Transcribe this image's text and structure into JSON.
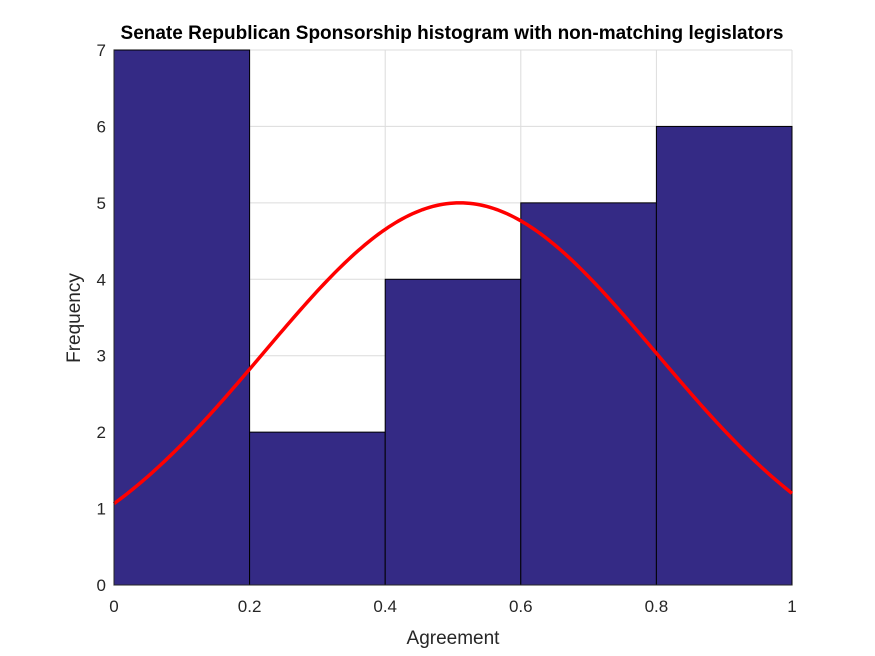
{
  "chart_data": {
    "type": "bar",
    "title": "Senate Republican Sponsorship histogram with non-matching legislators",
    "xlabel": "Agreement",
    "ylabel": "Frequency",
    "bins": [
      {
        "from": 0.0,
        "to": 0.2,
        "value": 7
      },
      {
        "from": 0.2,
        "to": 0.4,
        "value": 2
      },
      {
        "from": 0.4,
        "to": 0.6,
        "value": 4
      },
      {
        "from": 0.6,
        "to": 0.8,
        "value": 5
      },
      {
        "from": 0.8,
        "to": 1.0,
        "value": 6
      }
    ],
    "xlim": [
      0,
      1
    ],
    "ylim": [
      0,
      7
    ],
    "xticks": [
      "0",
      "0.2",
      "0.4",
      "0.6",
      "0.8",
      "1"
    ],
    "yticks": [
      "0",
      "1",
      "2",
      "3",
      "4",
      "5",
      "6",
      "7"
    ],
    "fit_curve": {
      "type": "normal",
      "mean": 0.51,
      "std": 0.29,
      "peak": 5.0,
      "color": "#ff0000"
    },
    "bar_color": "#342a85",
    "grid": true
  }
}
